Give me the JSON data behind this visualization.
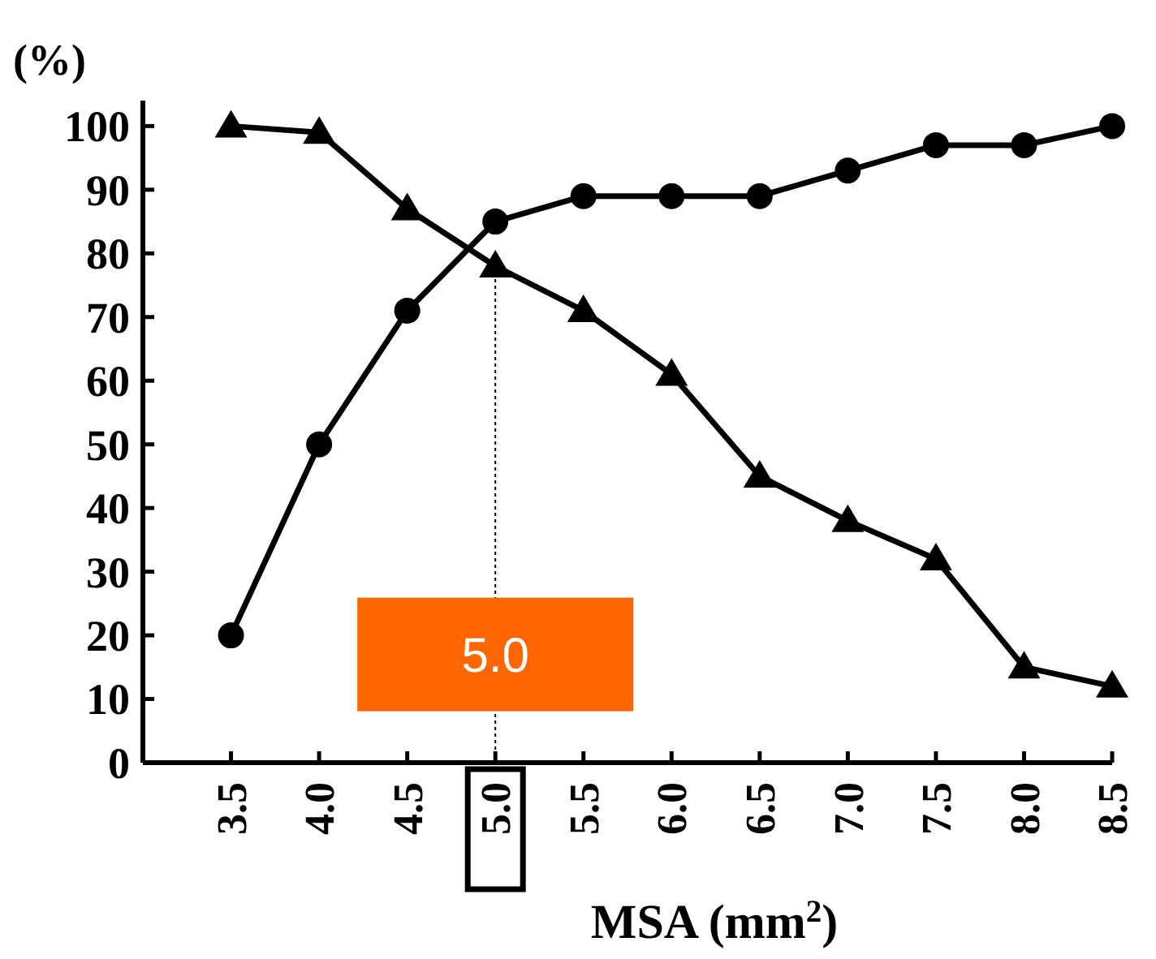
{
  "chart_data": {
    "type": "line",
    "ylabel": "(%)",
    "xlabel": "MSA (mm$^{2}$)",
    "x": [
      3.5,
      4.0,
      4.5,
      5.0,
      5.5,
      6.0,
      6.5,
      7.0,
      7.5,
      8.0,
      8.5
    ],
    "series": [
      {
        "color": "#000000",
        "marker": "circle",
        "values": [
          20,
          50,
          71,
          85,
          89,
          89,
          89,
          93,
          97,
          97,
          100
        ]
      },
      {
        "color": "#000000",
        "marker": "triangle",
        "values": [
          100,
          99,
          87,
          78,
          71,
          61,
          45,
          38,
          32,
          15,
          12
        ]
      }
    ],
    "xlim": [
      3.0,
      8.5
    ],
    "xticks": [
      {
        "value": 3.5,
        "label": "3.5"
      },
      {
        "value": 4.0,
        "label": "4.0"
      },
      {
        "value": 4.5,
        "label": "4.5"
      },
      {
        "value": 5.0,
        "label": "5.0"
      },
      {
        "value": 5.5,
        "label": "5.5"
      },
      {
        "value": 6.0,
        "label": "6.0"
      },
      {
        "value": 6.5,
        "label": "6.5"
      },
      {
        "value": 7.0,
        "label": "7.0"
      },
      {
        "value": 7.5,
        "label": "7.5"
      },
      {
        "value": 8.0,
        "label": "8.0"
      },
      {
        "value": 8.5,
        "label": "8.5"
      }
    ],
    "ylim": [
      0,
      104
    ],
    "yticks": [
      0,
      10,
      20,
      30,
      40,
      50,
      60,
      70,
      80,
      90,
      100
    ],
    "ref_lines": [
      {
        "axis": "x",
        "value": 5.0,
        "line_style": "dotted",
        "color": "#000000"
      }
    ],
    "annotations": [
      {
        "text": "5.0",
        "x": 5.0,
        "y": 17
      }
    ],
    "grid": false,
    "line_style": "solid"
  }
}
